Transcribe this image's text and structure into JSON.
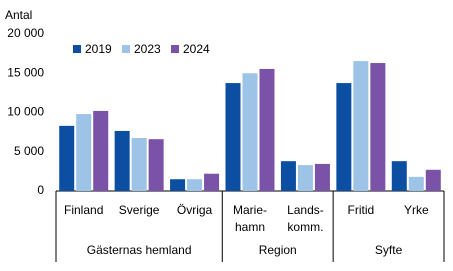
{
  "chart_data": {
    "type": "bar",
    "y_label": "Antal",
    "groups": [
      {
        "name": "Gästernas hemland",
        "categories": [
          "Finland",
          "Sverige",
          "Övriga"
        ]
      },
      {
        "name": "Region",
        "categories": [
          "Marie-\nhamn",
          "Lands-\nkomm."
        ]
      },
      {
        "name": "Syfte",
        "categories": [
          "Fritid",
          "Yrke"
        ]
      }
    ],
    "series": [
      {
        "name": "2019",
        "color": "#0b4ea2",
        "values": [
          8300,
          7650,
          1500,
          13750,
          3800,
          13750,
          3800
        ]
      },
      {
        "name": "2023",
        "color": "#9dc3e6",
        "values": [
          9800,
          6750,
          1500,
          15000,
          3300,
          16550,
          1800
        ]
      },
      {
        "name": "2024",
        "color": "#7a52a8",
        "values": [
          10200,
          6600,
          2200,
          15550,
          3450,
          16300,
          2700
        ]
      }
    ],
    "ylim": [
      0,
      20000
    ],
    "yticks": [
      0,
      {
        "value": 5000,
        "label": "5 000"
      },
      {
        "value": 10000,
        "label": "10 000"
      },
      {
        "value": 15000,
        "label": "15 000"
      },
      {
        "value": 20000,
        "label": "20 000"
      }
    ],
    "grid": false,
    "legend": "top-left"
  }
}
